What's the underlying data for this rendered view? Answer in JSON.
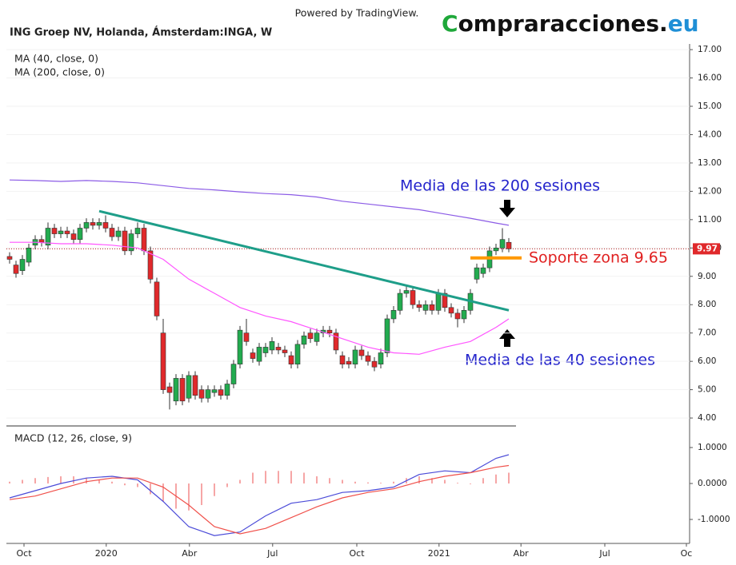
{
  "header": {
    "powered": "Powered by TradingView.",
    "logo": [
      "C",
      "ompraracciones.",
      "eu"
    ]
  },
  "chart_data": [
    {
      "type": "candlestick",
      "title": "ING Groep NV, Holanda, Ámsterdam:INGA, W",
      "up_color": "#22ab4f",
      "down_color": "#e0292b",
      "grid": true,
      "open": [
        9.7,
        9.4,
        9.2,
        9.5,
        10.1,
        10.3,
        10.1,
        10.7,
        10.5,
        10.6,
        10.5,
        10.3,
        10.7,
        10.9,
        10.8,
        10.9,
        10.7,
        10.4,
        10.6,
        9.9,
        10.5,
        10.7,
        9.9,
        8.8,
        7.0,
        5.1,
        4.6,
        5.4,
        4.7,
        5.5,
        5.0,
        4.7,
        4.9,
        5.0,
        4.8,
        5.2,
        5.9,
        7.0,
        6.3,
        6.0,
        6.3,
        6.4,
        6.5,
        6.4,
        6.2,
        5.9,
        6.6,
        7.0,
        6.7,
        7.0,
        7.1,
        7.0,
        6.2,
        6.0,
        5.9,
        6.4,
        6.2,
        6.0,
        5.9,
        6.3,
        7.5,
        7.8,
        8.4,
        8.5,
        8.0,
        7.8,
        8.0,
        7.8,
        8.4,
        7.9,
        7.7,
        7.5,
        7.8,
        8.9,
        9.1,
        9.3,
        9.9,
        10.0,
        10.2
      ],
      "high": [
        9.85,
        9.55,
        9.75,
        10.15,
        10.45,
        10.45,
        10.9,
        10.85,
        10.75,
        10.75,
        10.65,
        10.85,
        11.05,
        11.05,
        11.05,
        11.15,
        10.85,
        10.75,
        10.75,
        10.65,
        10.9,
        10.85,
        10.05,
        8.95,
        7.5,
        5.25,
        5.55,
        5.55,
        5.65,
        5.65,
        5.15,
        5.15,
        5.15,
        5.15,
        5.35,
        6.05,
        7.25,
        7.5,
        6.45,
        6.65,
        6.65,
        6.85,
        6.65,
        6.55,
        6.35,
        6.75,
        7.05,
        7.15,
        7.15,
        7.25,
        7.25,
        7.15,
        6.35,
        6.15,
        6.55,
        6.55,
        6.35,
        6.15,
        6.45,
        7.65,
        7.95,
        8.55,
        8.65,
        8.65,
        8.15,
        8.15,
        8.15,
        8.55,
        8.55,
        8.05,
        7.85,
        7.95,
        8.55,
        9.45,
        9.45,
        10.05,
        10.15,
        10.7,
        10.35
      ],
      "low": [
        9.45,
        8.95,
        9.05,
        9.35,
        9.95,
        10.05,
        9.95,
        10.35,
        10.35,
        10.35,
        10.15,
        10.15,
        10.55,
        10.65,
        10.65,
        10.55,
        10.25,
        10.25,
        9.75,
        9.75,
        10.35,
        9.75,
        8.75,
        7.45,
        4.85,
        4.3,
        4.45,
        4.45,
        4.55,
        4.65,
        4.55,
        4.55,
        4.75,
        4.65,
        4.65,
        5.05,
        5.75,
        6.55,
        5.95,
        5.85,
        6.15,
        6.25,
        6.25,
        6.15,
        5.75,
        5.75,
        6.45,
        6.65,
        6.55,
        6.85,
        6.85,
        6.25,
        5.75,
        5.75,
        5.75,
        6.05,
        5.85,
        5.65,
        5.75,
        6.15,
        7.35,
        7.65,
        8.25,
        7.85,
        7.75,
        7.65,
        7.65,
        7.65,
        7.75,
        7.55,
        7.2,
        7.35,
        7.65,
        8.75,
        8.95,
        9.15,
        9.75,
        9.85,
        9.85
      ],
      "close": [
        9.6,
        9.1,
        9.6,
        10.0,
        10.3,
        10.2,
        10.7,
        10.5,
        10.6,
        10.5,
        10.3,
        10.7,
        10.9,
        10.8,
        10.9,
        10.7,
        10.4,
        10.6,
        9.9,
        10.5,
        10.7,
        9.9,
        8.9,
        7.6,
        5.0,
        4.9,
        5.4,
        4.6,
        5.5,
        4.8,
        4.7,
        5.0,
        5.0,
        4.8,
        5.2,
        5.9,
        7.1,
        6.7,
        6.1,
        6.5,
        6.5,
        6.7,
        6.4,
        6.3,
        5.9,
        6.6,
        6.9,
        6.8,
        7.0,
        7.1,
        7.0,
        6.4,
        5.9,
        5.9,
        6.4,
        6.2,
        6.0,
        5.8,
        6.3,
        7.5,
        7.8,
        8.4,
        8.5,
        8.0,
        7.9,
        8.0,
        7.8,
        8.4,
        7.9,
        7.7,
        7.5,
        7.8,
        8.4,
        9.3,
        9.3,
        9.9,
        10.0,
        10.3,
        9.97
      ],
      "series": [
        {
          "name": "MA (40, close, 0)",
          "color": "#ff55ff",
          "x": [
            0,
            4,
            8,
            12,
            16,
            20,
            24,
            28,
            32,
            36,
            40,
            44,
            48,
            52,
            56,
            60,
            64,
            68,
            72,
            76,
            78
          ],
          "values": [
            10.2,
            10.2,
            10.15,
            10.15,
            10.1,
            10.0,
            9.6,
            8.9,
            8.4,
            7.9,
            7.6,
            7.4,
            7.1,
            6.8,
            6.5,
            6.3,
            6.25,
            6.5,
            6.7,
            7.2,
            7.5
          ]
        },
        {
          "name": "MA (200, close, 0)",
          "color": "#8c5ce6",
          "x": [
            0,
            4,
            8,
            12,
            16,
            20,
            24,
            28,
            32,
            36,
            40,
            44,
            48,
            52,
            56,
            60,
            64,
            68,
            72,
            76,
            78
          ],
          "values": [
            12.4,
            12.38,
            12.35,
            12.38,
            12.35,
            12.3,
            12.2,
            12.1,
            12.05,
            11.98,
            11.92,
            11.88,
            11.8,
            11.65,
            11.55,
            11.45,
            11.35,
            11.2,
            11.05,
            10.88,
            10.8
          ]
        }
      ],
      "trendline": {
        "x": [
          14,
          78
        ],
        "values": [
          11.3,
          7.8
        ],
        "color": "#1e9e89"
      },
      "support": {
        "value": 9.65,
        "color": "#ff9800"
      },
      "last_price": 9.97,
      "annotations": [
        "Media de las 200 sesiones",
        "Soporte zona 9.65",
        "Media de las 40 sesiones"
      ],
      "xlim": [
        -0.5,
        106.25
      ],
      "xticks": [
        {
          "value": 2.25,
          "label": "Oct"
        },
        {
          "value": 15.1,
          "label": "2020"
        },
        {
          "value": 28.1,
          "label": "Abr"
        },
        {
          "value": 41.1,
          "label": "Jul"
        },
        {
          "value": 54.25,
          "label": "Oct"
        },
        {
          "value": 67.1,
          "label": "2021"
        },
        {
          "value": 79.9,
          "label": "Abr"
        },
        {
          "value": 93,
          "label": "Jul"
        },
        {
          "value": 105.75,
          "label": "Oc"
        }
      ],
      "ylim": [
        3.72,
        17.2
      ],
      "yticks": [
        {
          "value": 4,
          "label": "4.00"
        },
        {
          "value": 5,
          "label": "5.00"
        },
        {
          "value": 6,
          "label": "6.00"
        },
        {
          "value": 7,
          "label": "7.00"
        },
        {
          "value": 8,
          "label": "8.00"
        },
        {
          "value": 9,
          "label": "9.00"
        },
        {
          "value": 10,
          "label": "10.00"
        },
        {
          "value": 11,
          "label": "11.00"
        },
        {
          "value": 12,
          "label": "12.00"
        },
        {
          "value": 13,
          "label": "13.00"
        },
        {
          "value": 14,
          "label": "14.00"
        },
        {
          "value": 15,
          "label": "15.00"
        },
        {
          "value": 16,
          "label": "16.00"
        },
        {
          "value": 17,
          "label": "17.00"
        }
      ]
    },
    {
      "type": "macd",
      "title": "MACD (12, 26, close, 9)",
      "series": [
        {
          "color": "#4b4bd8",
          "x": [
            0,
            4,
            8,
            12,
            16,
            20,
            24,
            28,
            32,
            36,
            40,
            44,
            48,
            52,
            56,
            60,
            64,
            68,
            72,
            76,
            78
          ],
          "values": [
            -0.4,
            -0.2,
            0.0,
            0.15,
            0.2,
            0.1,
            -0.5,
            -1.2,
            -1.45,
            -1.35,
            -0.9,
            -0.55,
            -0.45,
            -0.25,
            -0.2,
            -0.1,
            0.25,
            0.35,
            0.3,
            0.7,
            0.8
          ]
        },
        {
          "color": "#f0504a",
          "x": [
            0,
            4,
            8,
            12,
            16,
            20,
            24,
            28,
            32,
            36,
            40,
            44,
            48,
            52,
            56,
            60,
            64,
            68,
            72,
            76,
            78
          ],
          "values": [
            -0.45,
            -0.35,
            -0.15,
            0.05,
            0.15,
            0.15,
            -0.1,
            -0.6,
            -1.2,
            -1.4,
            -1.25,
            -0.95,
            -0.65,
            -0.4,
            -0.25,
            -0.15,
            0.05,
            0.2,
            0.3,
            0.45,
            0.5
          ]
        }
      ],
      "histogram": {
        "color": "#f06a6a",
        "x": [
          0,
          2,
          4,
          6,
          8,
          10,
          12,
          14,
          16,
          18,
          20,
          22,
          24,
          26,
          28,
          30,
          32,
          34,
          36,
          38,
          40,
          42,
          44,
          46,
          48,
          50,
          52,
          54,
          56,
          58,
          60,
          62,
          64,
          66,
          68,
          70,
          72,
          74,
          76,
          78
        ],
        "values": [
          0.05,
          0.1,
          0.15,
          0.18,
          0.2,
          0.2,
          0.15,
          0.1,
          0.05,
          -0.05,
          -0.1,
          -0.3,
          -0.5,
          -0.7,
          -0.75,
          -0.6,
          -0.35,
          -0.1,
          0.1,
          0.3,
          0.35,
          0.35,
          0.35,
          0.3,
          0.2,
          0.15,
          0.1,
          0.05,
          0.03,
          0.02,
          0.05,
          0.15,
          0.2,
          0.15,
          0.1,
          0.02,
          -0.02,
          0.15,
          0.25,
          0.3
        ]
      },
      "xlim": [
        -0.5,
        106.25
      ],
      "ylim": [
        -1.667,
        1.6
      ],
      "yticks": [
        {
          "value": 1,
          "label": "1.0000"
        },
        {
          "value": 0,
          "label": "0.0000"
        },
        {
          "value": -1,
          "label": "-1.0000"
        }
      ]
    }
  ]
}
